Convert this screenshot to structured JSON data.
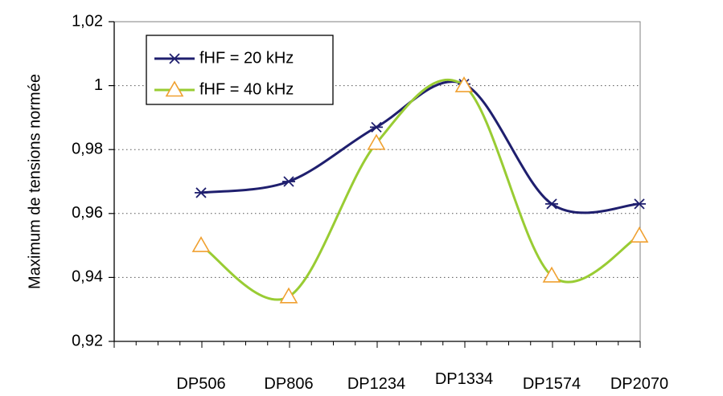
{
  "chart_data": {
    "type": "line",
    "title": "",
    "xlabel": "",
    "ylabel": "Maximum de tensions normée",
    "categories": [
      "DP506",
      "DP806",
      "DP1234",
      "DP1334",
      "DP1574",
      "DP2070"
    ],
    "ylim": [
      0.92,
      1.02
    ],
    "yticks": [
      {
        "value": 0.92,
        "label": "0,92"
      },
      {
        "value": 0.94,
        "label": "0,94"
      },
      {
        "value": 0.96,
        "label": "0,96"
      },
      {
        "value": 0.98,
        "label": "0,98"
      },
      {
        "value": 1.0,
        "label": "1"
      },
      {
        "value": 1.02,
        "label": "1,02"
      }
    ],
    "grid": "horizontal dotted",
    "legend_position": "top-left",
    "series": [
      {
        "name": "fHF = 20 kHz",
        "color": "#1f1f6e",
        "marker": "asterisk",
        "values": [
          0.9665,
          0.97,
          0.987,
          1.0005,
          0.963,
          0.963
        ]
      },
      {
        "name": "fHF = 40 kHz",
        "color": "#99cc33",
        "marker_color": "#f0a030",
        "marker": "triangle",
        "values": [
          0.95,
          0.934,
          0.982,
          1.0,
          0.9405,
          0.953
        ]
      }
    ]
  }
}
